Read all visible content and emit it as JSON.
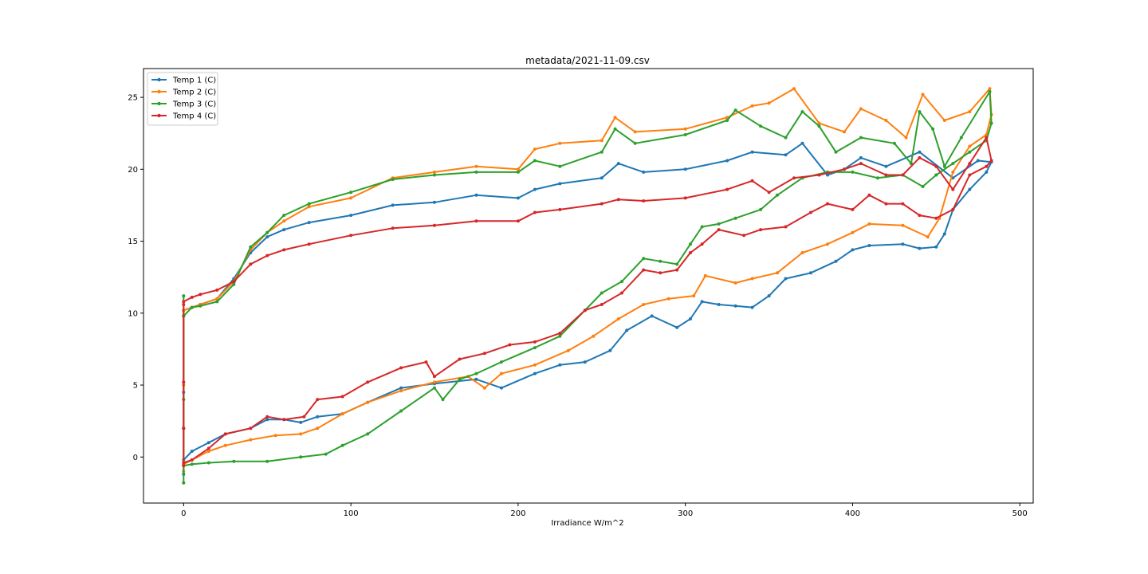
{
  "chart_data": {
    "type": "line",
    "title": "metadata/2021-11-09.csv",
    "xlabel": "Irradiance W/m^2",
    "ylabel": "",
    "xlim": [
      -24,
      508
    ],
    "ylim": [
      -3.2,
      27
    ],
    "xticks": [
      0,
      100,
      200,
      300,
      400,
      500
    ],
    "yticks": [
      0,
      5,
      10,
      15,
      20,
      25
    ],
    "grid": false,
    "legend_position": "top-left",
    "series": [
      {
        "name": "Temp 1 (C)",
        "color": "#1f77b4",
        "points": [
          [
            0,
            -1.2
          ],
          [
            0,
            2
          ],
          [
            0,
            4.5
          ],
          [
            0,
            9.8
          ],
          [
            0,
            10.2
          ],
          [
            5,
            10.4
          ],
          [
            10,
            10.6
          ],
          [
            20,
            11.0
          ],
          [
            30,
            12.4
          ],
          [
            40,
            14.2
          ],
          [
            50,
            15.3
          ],
          [
            60,
            15.8
          ],
          [
            75,
            16.3
          ],
          [
            100,
            16.8
          ],
          [
            125,
            17.5
          ],
          [
            150,
            17.7
          ],
          [
            175,
            18.2
          ],
          [
            200,
            18.0
          ],
          [
            210,
            18.6
          ],
          [
            225,
            19.0
          ],
          [
            250,
            19.4
          ],
          [
            260,
            20.4
          ],
          [
            275,
            19.8
          ],
          [
            300,
            20.0
          ],
          [
            325,
            20.6
          ],
          [
            340,
            21.2
          ],
          [
            360,
            21.0
          ],
          [
            370,
            21.8
          ],
          [
            385,
            19.6
          ],
          [
            395,
            20.0
          ],
          [
            405,
            20.8
          ],
          [
            420,
            20.2
          ],
          [
            440,
            21.2
          ],
          [
            460,
            19.4
          ],
          [
            475,
            20.6
          ],
          [
            483,
            20.5
          ],
          [
            480,
            19.8
          ],
          [
            470,
            18.6
          ],
          [
            460,
            17.2
          ],
          [
            455,
            15.5
          ],
          [
            450,
            14.6
          ],
          [
            440,
            14.5
          ],
          [
            430,
            14.8
          ],
          [
            410,
            14.7
          ],
          [
            400,
            14.4
          ],
          [
            390,
            13.6
          ],
          [
            375,
            12.8
          ],
          [
            360,
            12.4
          ],
          [
            350,
            11.2
          ],
          [
            340,
            10.4
          ],
          [
            330,
            10.5
          ],
          [
            320,
            10.6
          ],
          [
            310,
            10.8
          ],
          [
            303,
            9.6
          ],
          [
            295,
            9.0
          ],
          [
            280,
            9.8
          ],
          [
            265,
            8.8
          ],
          [
            255,
            7.4
          ],
          [
            240,
            6.6
          ],
          [
            225,
            6.4
          ],
          [
            210,
            5.8
          ],
          [
            190,
            4.8
          ],
          [
            175,
            5.4
          ],
          [
            150,
            5.1
          ],
          [
            130,
            4.8
          ],
          [
            110,
            3.8
          ],
          [
            95,
            3.0
          ],
          [
            80,
            2.8
          ],
          [
            70,
            2.4
          ],
          [
            60,
            2.6
          ],
          [
            50,
            2.6
          ],
          [
            40,
            2.0
          ],
          [
            25,
            1.6
          ],
          [
            15,
            1.0
          ],
          [
            5,
            0.4
          ],
          [
            0,
            -0.2
          ]
        ]
      },
      {
        "name": "Temp 2 (C)",
        "color": "#ff7f0e",
        "points": [
          [
            0,
            -1.0
          ],
          [
            0,
            2.0
          ],
          [
            0,
            5.0
          ],
          [
            0,
            9.8
          ],
          [
            0,
            10.2
          ],
          [
            5,
            10.4
          ],
          [
            10,
            10.6
          ],
          [
            20,
            11.0
          ],
          [
            30,
            12.2
          ],
          [
            40,
            14.4
          ],
          [
            50,
            15.6
          ],
          [
            60,
            16.4
          ],
          [
            75,
            17.4
          ],
          [
            100,
            18.0
          ],
          [
            125,
            19.4
          ],
          [
            150,
            19.8
          ],
          [
            175,
            20.2
          ],
          [
            200,
            20.0
          ],
          [
            210,
            21.4
          ],
          [
            225,
            21.8
          ],
          [
            250,
            22.0
          ],
          [
            258,
            23.6
          ],
          [
            270,
            22.6
          ],
          [
            300,
            22.8
          ],
          [
            325,
            23.6
          ],
          [
            340,
            24.4
          ],
          [
            350,
            24.6
          ],
          [
            365,
            25.6
          ],
          [
            380,
            23.2
          ],
          [
            395,
            22.6
          ],
          [
            405,
            24.2
          ],
          [
            420,
            23.4
          ],
          [
            432,
            22.2
          ],
          [
            442,
            25.2
          ],
          [
            455,
            23.4
          ],
          [
            470,
            24.0
          ],
          [
            482,
            25.6
          ],
          [
            483,
            23.8
          ],
          [
            480,
            22.4
          ],
          [
            470,
            21.6
          ],
          [
            460,
            19.8
          ],
          [
            452,
            16.6
          ],
          [
            445,
            15.3
          ],
          [
            430,
            16.1
          ],
          [
            410,
            16.2
          ],
          [
            400,
            15.6
          ],
          [
            385,
            14.8
          ],
          [
            370,
            14.2
          ],
          [
            355,
            12.8
          ],
          [
            340,
            12.4
          ],
          [
            330,
            12.1
          ],
          [
            312,
            12.6
          ],
          [
            305,
            11.2
          ],
          [
            290,
            11.0
          ],
          [
            275,
            10.6
          ],
          [
            260,
            9.6
          ],
          [
            245,
            8.4
          ],
          [
            230,
            7.4
          ],
          [
            210,
            6.4
          ],
          [
            190,
            5.8
          ],
          [
            180,
            4.8
          ],
          [
            170,
            5.6
          ],
          [
            150,
            5.2
          ],
          [
            130,
            4.6
          ],
          [
            110,
            3.8
          ],
          [
            95,
            3.0
          ],
          [
            80,
            2.0
          ],
          [
            70,
            1.6
          ],
          [
            55,
            1.5
          ],
          [
            40,
            1.2
          ],
          [
            25,
            0.8
          ],
          [
            15,
            0.4
          ],
          [
            5,
            -0.2
          ],
          [
            0,
            -0.5
          ]
        ]
      },
      {
        "name": "Temp 3 (C)",
        "color": "#2ca02c",
        "points": [
          [
            0,
            -1.8
          ],
          [
            0,
            2.0
          ],
          [
            0,
            4.0
          ],
          [
            0,
            11.2
          ],
          [
            0,
            9.8
          ],
          [
            5,
            10.4
          ],
          [
            10,
            10.5
          ],
          [
            20,
            10.8
          ],
          [
            30,
            12.0
          ],
          [
            40,
            14.6
          ],
          [
            50,
            15.6
          ],
          [
            60,
            16.8
          ],
          [
            75,
            17.6
          ],
          [
            100,
            18.4
          ],
          [
            125,
            19.3
          ],
          [
            150,
            19.6
          ],
          [
            175,
            19.8
          ],
          [
            200,
            19.8
          ],
          [
            210,
            20.6
          ],
          [
            225,
            20.2
          ],
          [
            250,
            21.2
          ],
          [
            258,
            22.8
          ],
          [
            270,
            21.8
          ],
          [
            300,
            22.4
          ],
          [
            325,
            23.4
          ],
          [
            330,
            24.1
          ],
          [
            345,
            23.0
          ],
          [
            360,
            22.2
          ],
          [
            370,
            24.0
          ],
          [
            380,
            23.0
          ],
          [
            390,
            21.2
          ],
          [
            405,
            22.2
          ],
          [
            425,
            21.8
          ],
          [
            435,
            20.4
          ],
          [
            440,
            24.0
          ],
          [
            448,
            22.8
          ],
          [
            455,
            20.2
          ],
          [
            465,
            22.2
          ],
          [
            482,
            25.4
          ],
          [
            483,
            23.2
          ],
          [
            480,
            22.0
          ],
          [
            470,
            21.2
          ],
          [
            460,
            20.4
          ],
          [
            450,
            19.6
          ],
          [
            442,
            18.8
          ],
          [
            430,
            19.6
          ],
          [
            415,
            19.4
          ],
          [
            400,
            19.8
          ],
          [
            385,
            19.8
          ],
          [
            370,
            19.4
          ],
          [
            355,
            18.2
          ],
          [
            345,
            17.2
          ],
          [
            330,
            16.6
          ],
          [
            320,
            16.2
          ],
          [
            310,
            16.0
          ],
          [
            303,
            14.8
          ],
          [
            295,
            13.4
          ],
          [
            285,
            13.6
          ],
          [
            275,
            13.8
          ],
          [
            262,
            12.2
          ],
          [
            250,
            11.4
          ],
          [
            240,
            10.2
          ],
          [
            225,
            8.4
          ],
          [
            210,
            7.6
          ],
          [
            190,
            6.6
          ],
          [
            175,
            5.8
          ],
          [
            165,
            5.4
          ],
          [
            155,
            4.0
          ],
          [
            150,
            4.8
          ],
          [
            130,
            3.2
          ],
          [
            110,
            1.6
          ],
          [
            95,
            0.8
          ],
          [
            85,
            0.2
          ],
          [
            70,
            0.0
          ],
          [
            50,
            -0.3
          ],
          [
            30,
            -0.3
          ],
          [
            15,
            -0.4
          ],
          [
            5,
            -0.5
          ],
          [
            0,
            -0.6
          ]
        ]
      },
      {
        "name": "Temp 4 (C)",
        "color": "#d62728",
        "points": [
          [
            0,
            -0.6
          ],
          [
            0,
            2.0
          ],
          [
            0,
            5.2
          ],
          [
            0,
            10.6
          ],
          [
            0,
            10.8
          ],
          [
            5,
            11.1
          ],
          [
            10,
            11.3
          ],
          [
            20,
            11.6
          ],
          [
            30,
            12.2
          ],
          [
            40,
            13.4
          ],
          [
            50,
            14.0
          ],
          [
            60,
            14.4
          ],
          [
            75,
            14.8
          ],
          [
            100,
            15.4
          ],
          [
            125,
            15.9
          ],
          [
            150,
            16.1
          ],
          [
            175,
            16.4
          ],
          [
            200,
            16.4
          ],
          [
            210,
            17.0
          ],
          [
            225,
            17.2
          ],
          [
            250,
            17.6
          ],
          [
            260,
            17.9
          ],
          [
            275,
            17.8
          ],
          [
            300,
            18.0
          ],
          [
            325,
            18.6
          ],
          [
            340,
            19.2
          ],
          [
            350,
            18.4
          ],
          [
            365,
            19.4
          ],
          [
            380,
            19.6
          ],
          [
            395,
            20.0
          ],
          [
            405,
            20.4
          ],
          [
            420,
            19.6
          ],
          [
            430,
            19.6
          ],
          [
            440,
            20.8
          ],
          [
            450,
            20.2
          ],
          [
            460,
            18.6
          ],
          [
            470,
            20.4
          ],
          [
            480,
            22.2
          ],
          [
            483,
            20.6
          ],
          [
            480,
            20.2
          ],
          [
            470,
            19.6
          ],
          [
            460,
            17.2
          ],
          [
            450,
            16.6
          ],
          [
            440,
            16.8
          ],
          [
            430,
            17.6
          ],
          [
            420,
            17.6
          ],
          [
            410,
            18.2
          ],
          [
            400,
            17.2
          ],
          [
            385,
            17.6
          ],
          [
            375,
            17.0
          ],
          [
            360,
            16.0
          ],
          [
            345,
            15.8
          ],
          [
            335,
            15.4
          ],
          [
            320,
            15.8
          ],
          [
            310,
            14.8
          ],
          [
            303,
            14.2
          ],
          [
            295,
            13.0
          ],
          [
            285,
            12.8
          ],
          [
            275,
            13.0
          ],
          [
            262,
            11.4
          ],
          [
            250,
            10.6
          ],
          [
            240,
            10.2
          ],
          [
            225,
            8.6
          ],
          [
            210,
            8.0
          ],
          [
            195,
            7.8
          ],
          [
            180,
            7.2
          ],
          [
            165,
            6.8
          ],
          [
            150,
            5.6
          ],
          [
            145,
            6.6
          ],
          [
            130,
            6.2
          ],
          [
            110,
            5.2
          ],
          [
            95,
            4.2
          ],
          [
            80,
            4.0
          ],
          [
            72,
            2.8
          ],
          [
            60,
            2.6
          ],
          [
            50,
            2.8
          ],
          [
            40,
            2.0
          ],
          [
            25,
            1.6
          ],
          [
            15,
            0.6
          ],
          [
            5,
            -0.2
          ],
          [
            0,
            -0.4
          ]
        ]
      }
    ]
  }
}
